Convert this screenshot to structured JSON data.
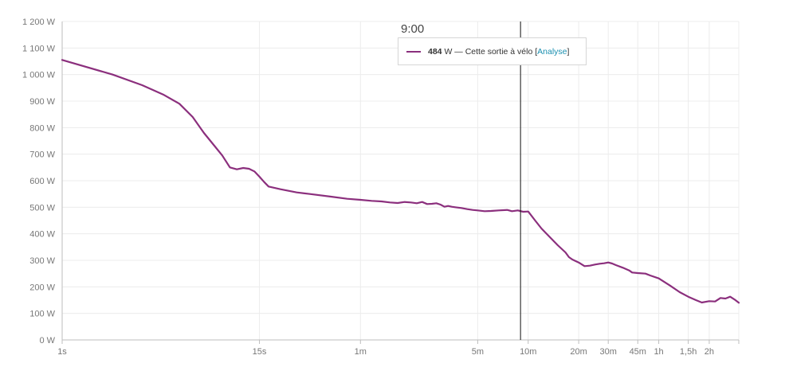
{
  "chart_data": {
    "type": "line",
    "title": "",
    "xlabel": "",
    "ylabel": "",
    "x_scale": "log",
    "x_range_seconds": [
      1,
      10800
    ],
    "ylim": [
      0,
      1200
    ],
    "grid": true,
    "y_ticks": [
      {
        "value": 0,
        "label": "0 W"
      },
      {
        "value": 100,
        "label": "100 W"
      },
      {
        "value": 200,
        "label": "200 W"
      },
      {
        "value": 300,
        "label": "300 W"
      },
      {
        "value": 400,
        "label": "400 W"
      },
      {
        "value": 500,
        "label": "500 W"
      },
      {
        "value": 600,
        "label": "600 W"
      },
      {
        "value": 700,
        "label": "700 W"
      },
      {
        "value": 800,
        "label": "800 W"
      },
      {
        "value": 900,
        "label": "900 W"
      },
      {
        "value": 1000,
        "label": "1 000 W"
      },
      {
        "value": 1100,
        "label": "1 100 W"
      },
      {
        "value": 1200,
        "label": "1 200 W"
      }
    ],
    "x_ticks": [
      {
        "seconds": 1,
        "label": "1s"
      },
      {
        "seconds": 15,
        "label": "15s"
      },
      {
        "seconds": 60,
        "label": "1m"
      },
      {
        "seconds": 300,
        "label": "5m"
      },
      {
        "seconds": 600,
        "label": "10m"
      },
      {
        "seconds": 1200,
        "label": "20m"
      },
      {
        "seconds": 1800,
        "label": "30m"
      },
      {
        "seconds": 2700,
        "label": "45m"
      },
      {
        "seconds": 3600,
        "label": "1h"
      },
      {
        "seconds": 5400,
        "label": "1,5h"
      },
      {
        "seconds": 7200,
        "label": "2h"
      }
    ],
    "x_minor_gridlines": [
      10800
    ],
    "series": [
      {
        "color": "#8b2f7d",
        "points": [
          [
            1,
            1055
          ],
          [
            2,
            1000
          ],
          [
            3,
            960
          ],
          [
            4,
            925
          ],
          [
            5,
            890
          ],
          [
            6,
            840
          ],
          [
            7,
            780
          ],
          [
            8,
            735
          ],
          [
            9,
            695
          ],
          [
            10,
            650
          ],
          [
            11,
            643
          ],
          [
            12,
            648
          ],
          [
            13,
            645
          ],
          [
            14,
            635
          ],
          [
            15,
            615
          ],
          [
            16,
            595
          ],
          [
            17,
            578
          ],
          [
            20,
            568
          ],
          [
            25,
            556
          ],
          [
            30,
            550
          ],
          [
            40,
            540
          ],
          [
            50,
            532
          ],
          [
            60,
            528
          ],
          [
            70,
            524
          ],
          [
            80,
            522
          ],
          [
            90,
            518
          ],
          [
            100,
            516
          ],
          [
            110,
            520
          ],
          [
            120,
            518
          ],
          [
            130,
            515
          ],
          [
            140,
            520
          ],
          [
            150,
            512
          ],
          [
            160,
            513
          ],
          [
            170,
            515
          ],
          [
            180,
            510
          ],
          [
            190,
            502
          ],
          [
            200,
            505
          ],
          [
            210,
            502
          ],
          [
            220,
            500
          ],
          [
            240,
            497
          ],
          [
            260,
            493
          ],
          [
            280,
            490
          ],
          [
            300,
            488
          ],
          [
            330,
            485
          ],
          [
            360,
            486
          ],
          [
            400,
            488
          ],
          [
            450,
            490
          ],
          [
            480,
            485
          ],
          [
            520,
            488
          ],
          [
            560,
            483
          ],
          [
            600,
            484
          ],
          [
            660,
            450
          ],
          [
            720,
            420
          ],
          [
            800,
            390
          ],
          [
            900,
            357
          ],
          [
            1000,
            330
          ],
          [
            1050,
            312
          ],
          [
            1100,
            303
          ],
          [
            1200,
            292
          ],
          [
            1300,
            278
          ],
          [
            1400,
            280
          ],
          [
            1500,
            284
          ],
          [
            1600,
            287
          ],
          [
            1700,
            289
          ],
          [
            1800,
            292
          ],
          [
            1900,
            288
          ],
          [
            2000,
            282
          ],
          [
            2200,
            272
          ],
          [
            2400,
            262
          ],
          [
            2500,
            254
          ],
          [
            2700,
            252
          ],
          [
            3000,
            250
          ],
          [
            3200,
            243
          ],
          [
            3600,
            232
          ],
          [
            4200,
            205
          ],
          [
            4800,
            180
          ],
          [
            5400,
            163
          ],
          [
            6000,
            150
          ],
          [
            6500,
            141
          ],
          [
            7200,
            146
          ],
          [
            7800,
            145
          ],
          [
            8400,
            158
          ],
          [
            9000,
            156
          ],
          [
            9600,
            163
          ],
          [
            10200,
            152
          ],
          [
            10800,
            140
          ]
        ]
      }
    ],
    "cursor": {
      "seconds": 540,
      "time_label": "9:00"
    }
  },
  "tooltip": {
    "value": "484",
    "unit_text": " W — Cette sortie à vélo ",
    "bracket_open": "[",
    "link_label": "Analyse",
    "bracket_close": "]"
  }
}
